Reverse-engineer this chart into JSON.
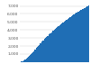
{
  "values": [
    9,
    23,
    42,
    65,
    93,
    125,
    160,
    199,
    241,
    287,
    336,
    388,
    444,
    503,
    565,
    628,
    695,
    763,
    834,
    906,
    980,
    1055,
    1131,
    1208,
    1287,
    1366,
    1445,
    1525,
    1604,
    1683,
    1762,
    1841,
    1919,
    1997,
    2074,
    2150,
    2226,
    2301,
    2375,
    2449,
    2522,
    2594,
    2666,
    2737,
    2808,
    2878,
    2948,
    3017,
    3086,
    3154,
    3222,
    3289,
    3356,
    3422,
    3487,
    3552,
    3616,
    3680,
    3743,
    3806,
    3868,
    3930,
    3991,
    4052,
    4112,
    4172,
    4231,
    4289,
    4347,
    4404,
    4461,
    4517,
    4573,
    4628,
    4683,
    4738,
    4792,
    4846,
    4899,
    4952,
    5005,
    5057,
    5109,
    5161,
    5212,
    5263,
    5313,
    5363,
    5413,
    5462,
    5511,
    5560,
    5608,
    5656,
    5703,
    5750,
    5797,
    5843,
    5889,
    5935,
    5980,
    6025,
    6070,
    6114,
    6158,
    6202,
    6246,
    6289,
    6332,
    6374,
    6416,
    6458,
    6499,
    6541,
    6582,
    6622,
    6663,
    6703,
    6743,
    6782,
    6822,
    6861,
    6900,
    6939,
    6978,
    7016,
    7054
  ],
  "bar_color": "#1f6eb5",
  "background_color": "#ffffff",
  "ylim": [
    0,
    7500
  ],
  "yticks": [
    1000,
    2000,
    3000,
    4000,
    5000,
    6000,
    7000
  ],
  "ytick_labels": [
    "1,000",
    "2,000",
    "3,000",
    "4,000",
    "5,000",
    "6,000",
    "7,000"
  ],
  "grid_color": "#cccccc",
  "tick_color": "#555555",
  "tick_fontsize": 3.2
}
